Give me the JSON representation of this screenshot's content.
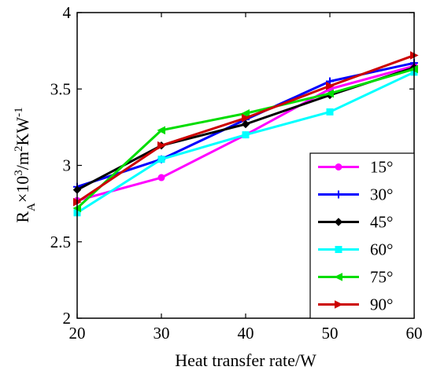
{
  "chart_data": {
    "type": "line",
    "xlabel": "Heat transfer rate/W",
    "ylabel": {
      "main": "R",
      "sub": "A",
      "rest": "×10",
      "sup": "3",
      "units": "/m",
      "units_sup": "2",
      "units_rest": "KW",
      "units_sup2": "-1"
    },
    "xlim": [
      20,
      60
    ],
    "ylim": [
      2,
      4
    ],
    "x_ticks": [
      "20",
      "30",
      "40",
      "50",
      "60"
    ],
    "y_ticks": [
      "2",
      "2.5",
      "3",
      "3.5",
      "4"
    ],
    "x": [
      20,
      30,
      40,
      50,
      60
    ],
    "legend_position": "bottom-right",
    "series": [
      {
        "name": "15°",
        "color": "#ff00ff",
        "marker": "circle",
        "values": [
          2.77,
          2.92,
          3.2,
          3.5,
          3.65
        ]
      },
      {
        "name": "30°",
        "color": "#0000ff",
        "marker": "plus",
        "values": [
          2.86,
          3.04,
          3.3,
          3.55,
          3.67
        ]
      },
      {
        "name": "45°",
        "color": "#000000",
        "marker": "diamond",
        "values": [
          2.84,
          3.13,
          3.27,
          3.46,
          3.64
        ]
      },
      {
        "name": "60°",
        "color": "#00ffff",
        "marker": "square",
        "values": [
          2.69,
          3.04,
          3.2,
          3.35,
          3.61
        ]
      },
      {
        "name": "75°",
        "color": "#00dd00",
        "marker": "triangle-left",
        "values": [
          2.72,
          3.23,
          3.34,
          3.47,
          3.63
        ]
      },
      {
        "name": "90°",
        "color": "#cc0000",
        "marker": "triangle-right",
        "values": [
          2.76,
          3.13,
          3.31,
          3.52,
          3.72
        ]
      }
    ]
  }
}
